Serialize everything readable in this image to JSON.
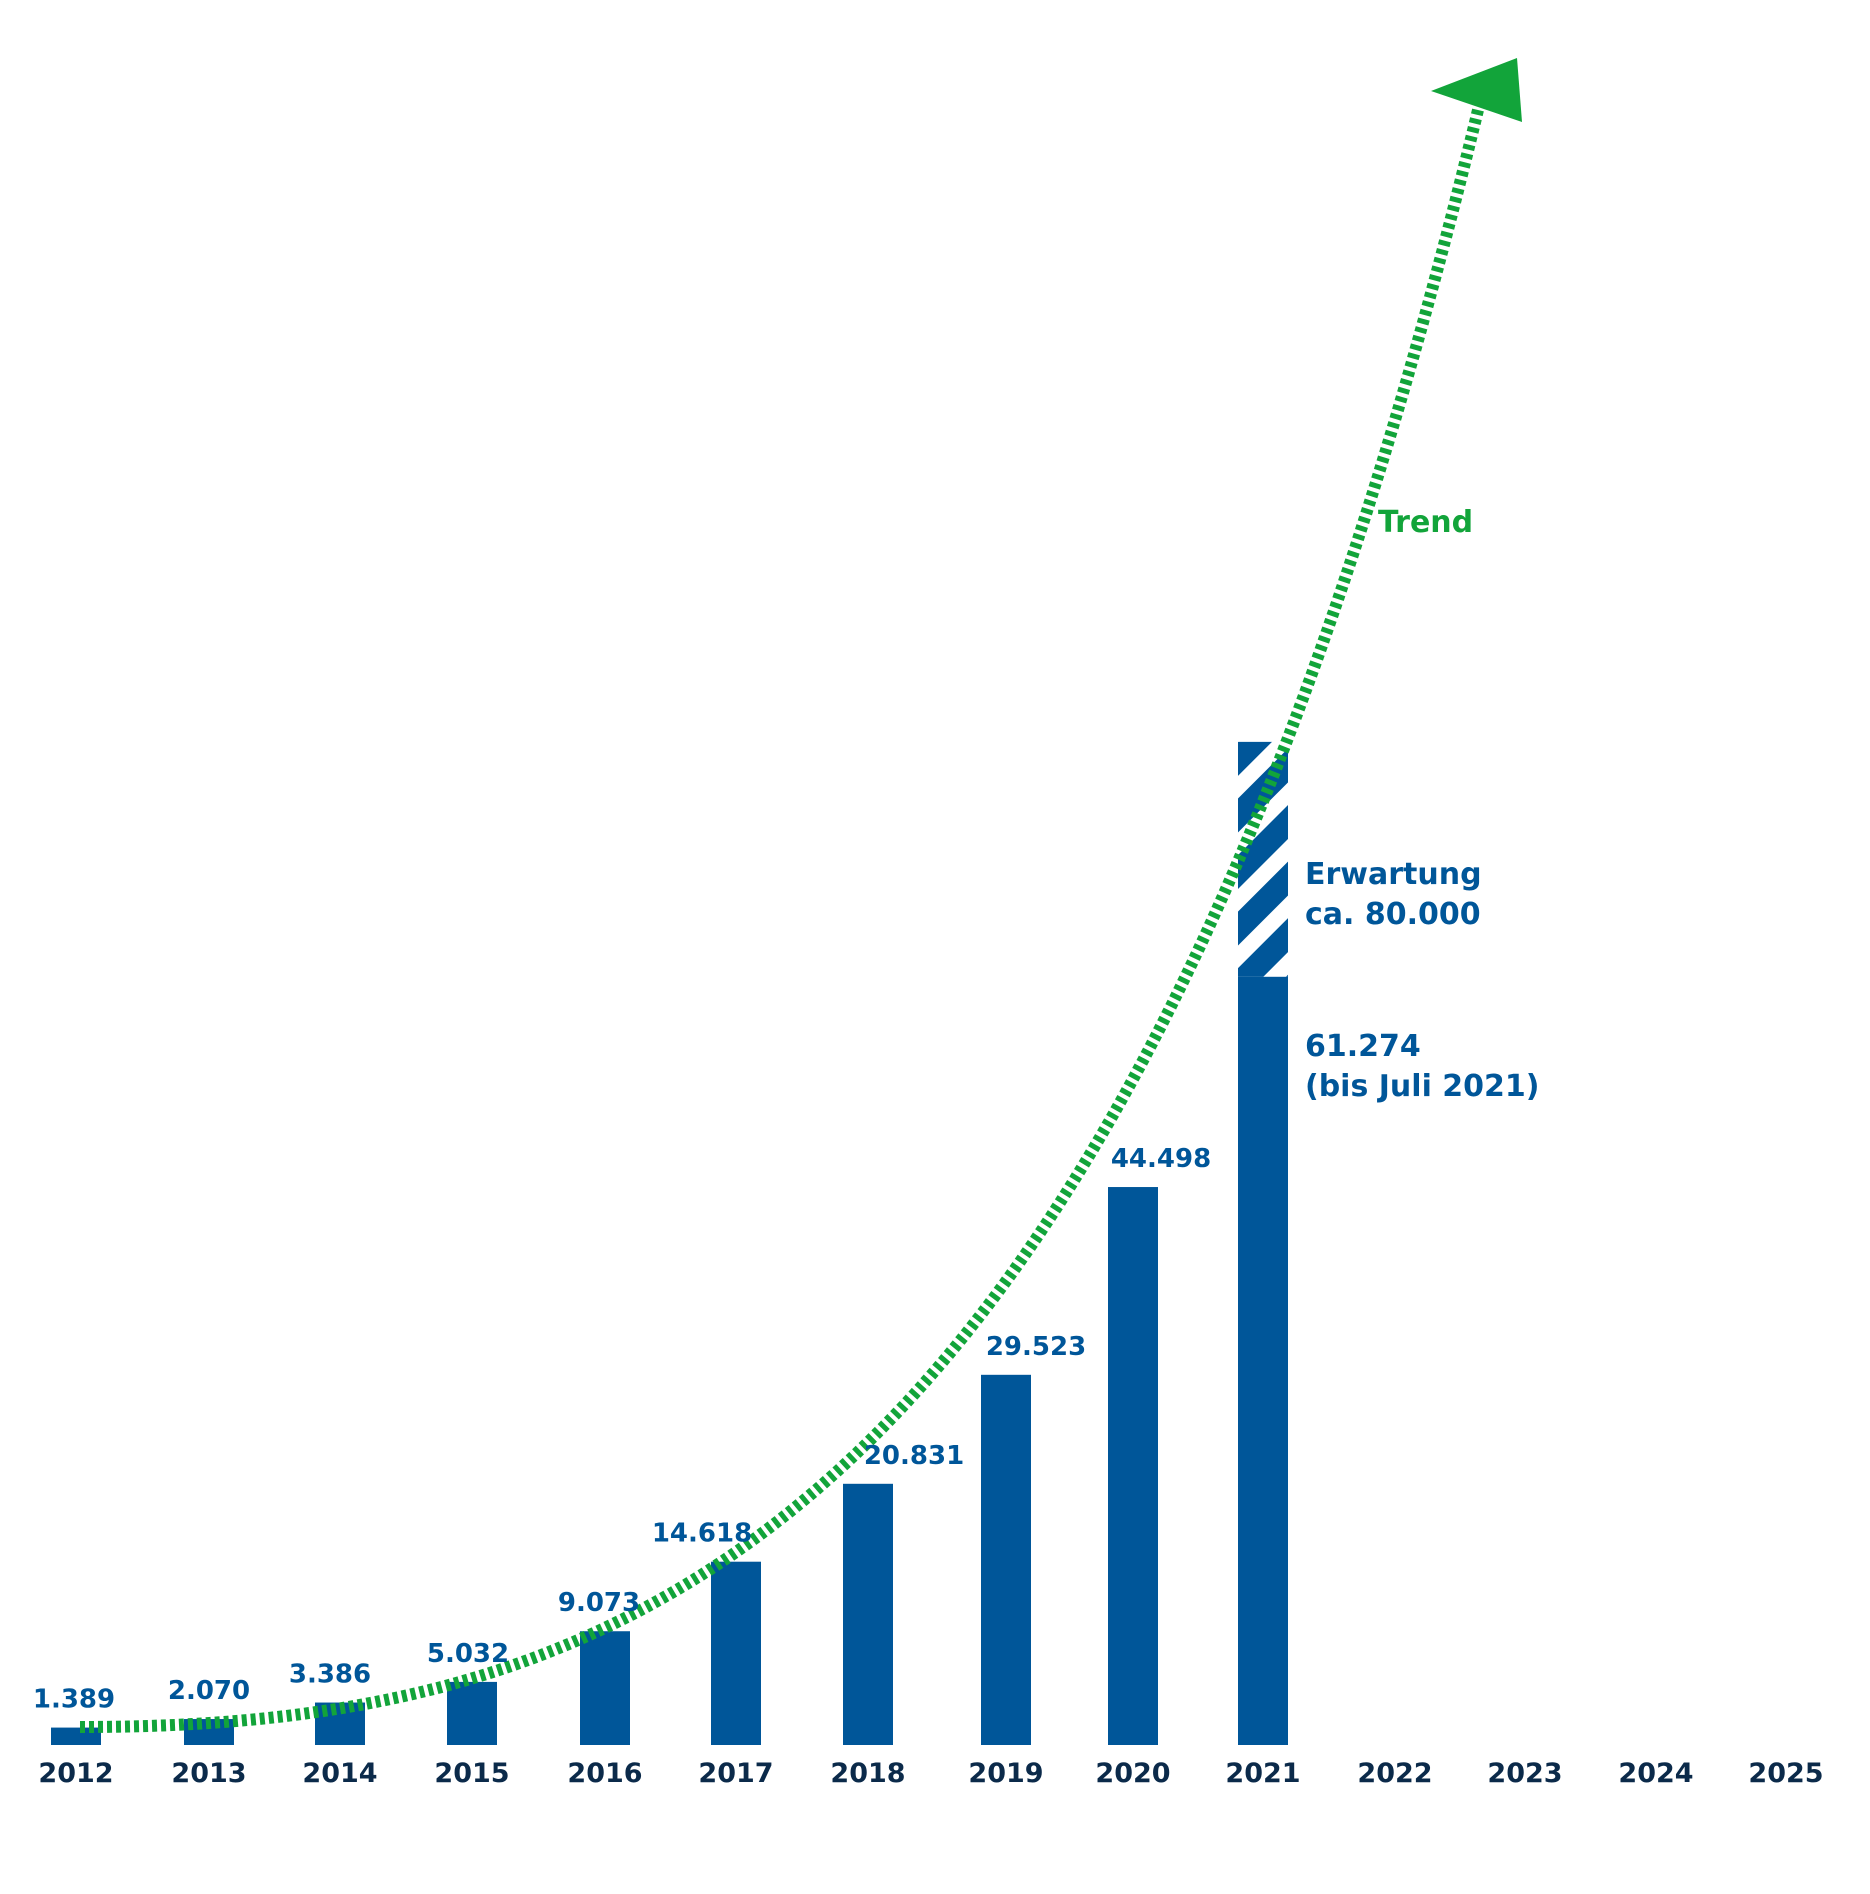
{
  "chart_data": {
    "type": "bar",
    "categories": [
      "2012",
      "2013",
      "2014",
      "2015",
      "2016",
      "2017",
      "2018",
      "2019",
      "2020",
      "2021",
      "2022",
      "2023",
      "2024",
      "2025"
    ],
    "values": [
      1389,
      2070,
      3386,
      5032,
      9073,
      14618,
      20831,
      29523,
      44498,
      61274,
      null,
      null,
      null,
      null
    ],
    "value_labels": [
      "1.389",
      "2.070",
      "3.386",
      "5.032",
      "9.073",
      "14.618",
      "20.831",
      "29.523",
      "44.498",
      "61.274",
      "",
      "",
      "",
      ""
    ],
    "expected": {
      "category": "2021",
      "value": 80000
    },
    "annotations": {
      "expectation_line1": "Erwartung",
      "expectation_line2": "ca. 80.000",
      "actual_line1": "61.274",
      "actual_line2": "(bis Juli 2021)",
      "trend": "Trend"
    },
    "ylim": [
      0,
      128000
    ],
    "grid": false,
    "colors": {
      "bar": "#005699",
      "trend": "#12a43a",
      "tick": "#0b2a4a"
    }
  }
}
